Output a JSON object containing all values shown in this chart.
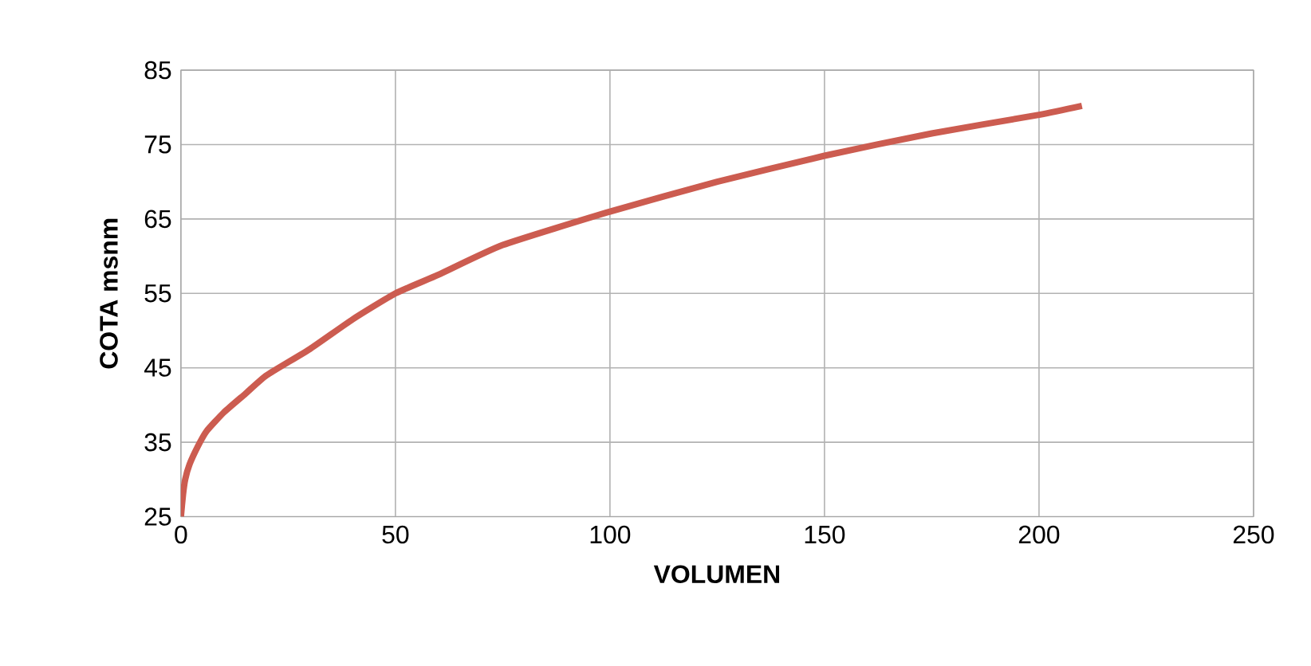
{
  "chart_data": {
    "type": "line",
    "xlabel": "VOLUMEN",
    "ylabel": "COTA msnm",
    "x": [
      0,
      0.5,
      1,
      2,
      4,
      6,
      10,
      15,
      20,
      30,
      40,
      50,
      60,
      75,
      100,
      125,
      150,
      175,
      200,
      210
    ],
    "series": [
      {
        "color": "#cc5c50",
        "values": [
          25,
          28,
          30,
          32,
          34.5,
          36.5,
          39,
          41.5,
          44,
          47.5,
          51.5,
          55,
          57.5,
          61.5,
          66,
          70,
          73.5,
          76.5,
          79,
          80.2
        ]
      }
    ],
    "xlim": [
      0,
      250
    ],
    "ylim": [
      25,
      85
    ],
    "xticks": [
      0,
      50,
      100,
      150,
      200,
      250
    ],
    "yticks": [
      25,
      35,
      45,
      55,
      65,
      75,
      85
    ],
    "grid": true,
    "marker": "none",
    "line_style": "solid"
  }
}
